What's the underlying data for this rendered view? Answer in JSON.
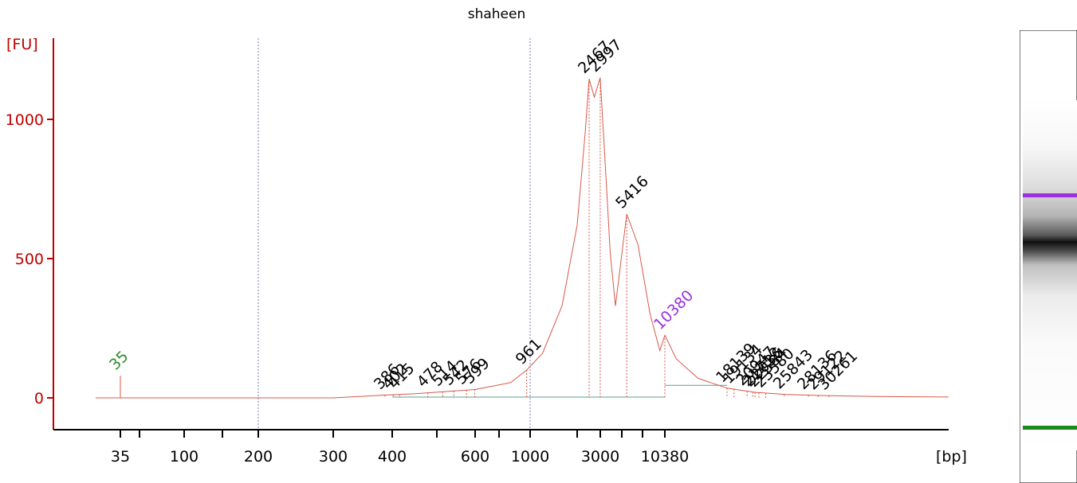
{
  "chart_data": {
    "type": "line",
    "title": "shaheen",
    "ylabel": "[FU]",
    "xlabel": "[bp]",
    "ylim": [
      -120,
      1290
    ],
    "yticks": [
      0,
      500,
      1000
    ],
    "xscale": "categorical-ladder",
    "xticks": [
      "35",
      "100",
      "200",
      "300",
      "400",
      "600",
      "1000",
      "3000",
      "10380"
    ],
    "colors": {
      "axis": "#c00000",
      "trace": "#d8584a",
      "ladder_marker": "#2e8b2e",
      "upper_marker": "#9b30e0",
      "baseline": "#5aa08c",
      "grid": "#7a7ab8"
    },
    "peaks": [
      {
        "label": "35",
        "bp": 35,
        "color": "#2e8b2e"
      },
      {
        "label": "386",
        "bp": 386,
        "color": "#000000"
      },
      {
        "label": "402",
        "bp": 402,
        "color": "#000000"
      },
      {
        "label": "415",
        "bp": 415,
        "color": "#000000"
      },
      {
        "label": "478",
        "bp": 478,
        "color": "#000000"
      },
      {
        "label": "514",
        "bp": 514,
        "color": "#000000"
      },
      {
        "label": "542",
        "bp": 542,
        "color": "#000000"
      },
      {
        "label": "576",
        "bp": 576,
        "color": "#000000"
      },
      {
        "label": "599",
        "bp": 599,
        "color": "#000000"
      },
      {
        "label": "961",
        "bp": 961,
        "color": "#000000"
      },
      {
        "label": "2467",
        "bp": 2467,
        "color": "#000000"
      },
      {
        "label": "2997",
        "bp": 2997,
        "color": "#000000"
      },
      {
        "label": "5416",
        "bp": 5416,
        "color": "#000000"
      },
      {
        "label": "10380",
        "bp": 10380,
        "color": "#9b30e0"
      },
      {
        "label": "18139",
        "bp": 18139,
        "color": "#000000"
      },
      {
        "label": "19134",
        "bp": 19134,
        "color": "#000000"
      },
      {
        "label": "20947",
        "bp": 20947,
        "color": "#000000"
      },
      {
        "label": "21713",
        "bp": 21713,
        "color": "#000000"
      },
      {
        "label": "22036",
        "bp": 22036,
        "color": "#000000"
      },
      {
        "label": "22584",
        "bp": 22584,
        "color": "#000000"
      },
      {
        "label": "23580",
        "bp": 23580,
        "color": "#000000"
      },
      {
        "label": "25843",
        "bp": 25843,
        "color": "#000000"
      },
      {
        "label": "28136",
        "bp": 28136,
        "color": "#000000"
      },
      {
        "label": "29122",
        "bp": 29122,
        "color": "#000000"
      },
      {
        "label": "30261",
        "bp": 30261,
        "color": "#000000"
      }
    ],
    "trace_fu": [
      [
        35,
        0
      ],
      [
        35,
        80
      ],
      [
        35,
        0
      ],
      [
        300,
        0
      ],
      [
        386,
        10
      ],
      [
        450,
        15
      ],
      [
        600,
        30
      ],
      [
        800,
        55
      ],
      [
        961,
        100
      ],
      [
        1200,
        160
      ],
      [
        1600,
        330
      ],
      [
        2000,
        620
      ],
      [
        2300,
        950
      ],
      [
        2467,
        1145
      ],
      [
        2700,
        1080
      ],
      [
        2997,
        1150
      ],
      [
        3300,
        900
      ],
      [
        3800,
        520
      ],
      [
        4300,
        330
      ],
      [
        5416,
        660
      ],
      [
        6500,
        550
      ],
      [
        8000,
        300
      ],
      [
        9500,
        170
      ],
      [
        10380,
        225
      ],
      [
        11500,
        140
      ],
      [
        14000,
        70
      ],
      [
        18139,
        35
      ],
      [
        22000,
        20
      ],
      [
        26000,
        12
      ],
      [
        30261,
        8
      ],
      [
        40000,
        5
      ],
      [
        60000,
        3
      ]
    ]
  },
  "gel": {
    "upper_marker_color": "#9b30e0",
    "lower_marker_color": "#1a8a1a"
  }
}
